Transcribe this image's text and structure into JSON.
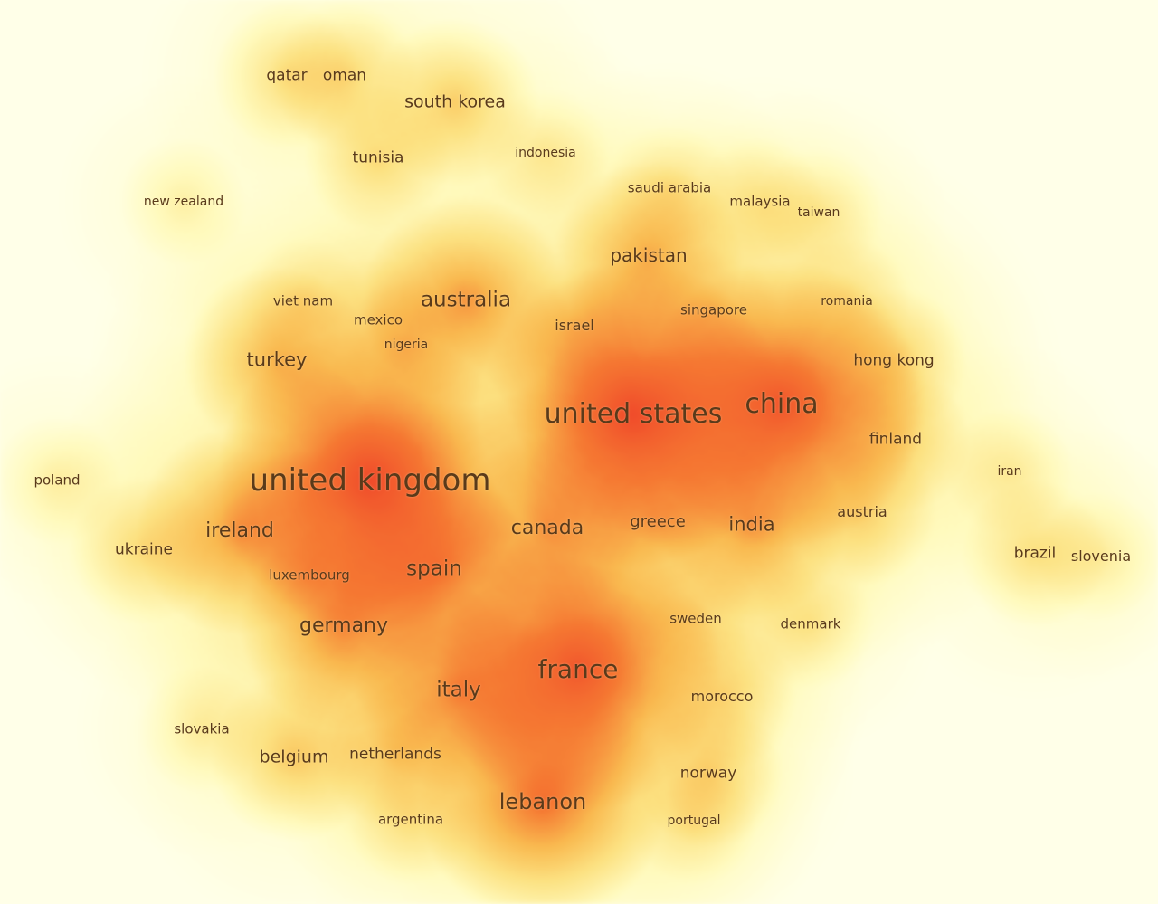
{
  "map_type": "country density visualization",
  "colors": {
    "background": "#ffffe8",
    "label": "#5a3a1a",
    "low_density": "#fff6b0",
    "mid_density": "#f8b84a",
    "high_density": "#f04a2a"
  },
  "countries": [
    {
      "key": "qatar",
      "label": "qatar",
      "weight": 2
    },
    {
      "key": "oman",
      "label": "oman",
      "weight": 2
    },
    {
      "key": "south-korea",
      "label": "south korea",
      "weight": 3
    },
    {
      "key": "tunisia",
      "label": "tunisia",
      "weight": 2
    },
    {
      "key": "indonesia",
      "label": "indonesia",
      "weight": 1
    },
    {
      "key": "new-zealand",
      "label": "new zealand",
      "weight": 1
    },
    {
      "key": "saudi-arabia",
      "label": "saudi arabia",
      "weight": 1
    },
    {
      "key": "malaysia",
      "label": "malaysia",
      "weight": 1
    },
    {
      "key": "taiwan",
      "label": "taiwan",
      "weight": 1
    },
    {
      "key": "pakistan",
      "label": "pakistan",
      "weight": 4
    },
    {
      "key": "australia",
      "label": "australia",
      "weight": 5
    },
    {
      "key": "viet-nam",
      "label": "viet nam",
      "weight": 1
    },
    {
      "key": "mexico",
      "label": "mexico",
      "weight": 1
    },
    {
      "key": "nigeria",
      "label": "nigeria",
      "weight": 1
    },
    {
      "key": "israel",
      "label": "israel",
      "weight": 1
    },
    {
      "key": "singapore",
      "label": "singapore",
      "weight": 1
    },
    {
      "key": "romania",
      "label": "romania",
      "weight": 1
    },
    {
      "key": "turkey",
      "label": "turkey",
      "weight": 4
    },
    {
      "key": "hong-kong",
      "label": "hong kong",
      "weight": 2
    },
    {
      "key": "united-states",
      "label": "united states",
      "weight": 10
    },
    {
      "key": "china",
      "label": "china",
      "weight": 9
    },
    {
      "key": "finland",
      "label": "finland",
      "weight": 2
    },
    {
      "key": "iran",
      "label": "iran",
      "weight": 1
    },
    {
      "key": "poland",
      "label": "poland",
      "weight": 1
    },
    {
      "key": "united-kingdom",
      "label": "united kingdom",
      "weight": 10
    },
    {
      "key": "ireland",
      "label": "ireland",
      "weight": 5
    },
    {
      "key": "canada",
      "label": "canada",
      "weight": 4
    },
    {
      "key": "greece",
      "label": "greece",
      "weight": 2
    },
    {
      "key": "india",
      "label": "india",
      "weight": 4
    },
    {
      "key": "austria",
      "label": "austria",
      "weight": 2
    },
    {
      "key": "ukraine",
      "label": "ukraine",
      "weight": 2
    },
    {
      "key": "luxembourg",
      "label": "luxembourg",
      "weight": 1
    },
    {
      "key": "spain",
      "label": "spain",
      "weight": 5
    },
    {
      "key": "brazil",
      "label": "brazil",
      "weight": 2
    },
    {
      "key": "slovenia",
      "label": "slovenia",
      "weight": 1
    },
    {
      "key": "germany",
      "label": "germany",
      "weight": 5
    },
    {
      "key": "sweden",
      "label": "sweden",
      "weight": 1
    },
    {
      "key": "denmark",
      "label": "denmark",
      "weight": 1
    },
    {
      "key": "france",
      "label": "france",
      "weight": 9
    },
    {
      "key": "italy",
      "label": "italy",
      "weight": 5
    },
    {
      "key": "morocco",
      "label": "morocco",
      "weight": 2
    },
    {
      "key": "slovakia",
      "label": "slovakia",
      "weight": 1
    },
    {
      "key": "belgium",
      "label": "belgium",
      "weight": 3
    },
    {
      "key": "netherlands",
      "label": "netherlands",
      "weight": 2
    },
    {
      "key": "norway",
      "label": "norway",
      "weight": 2
    },
    {
      "key": "lebanon",
      "label": "lebanon",
      "weight": 7
    },
    {
      "key": "argentina",
      "label": "argentina",
      "weight": 1
    },
    {
      "key": "portugal",
      "label": "portugal",
      "weight": 1
    }
  ]
}
